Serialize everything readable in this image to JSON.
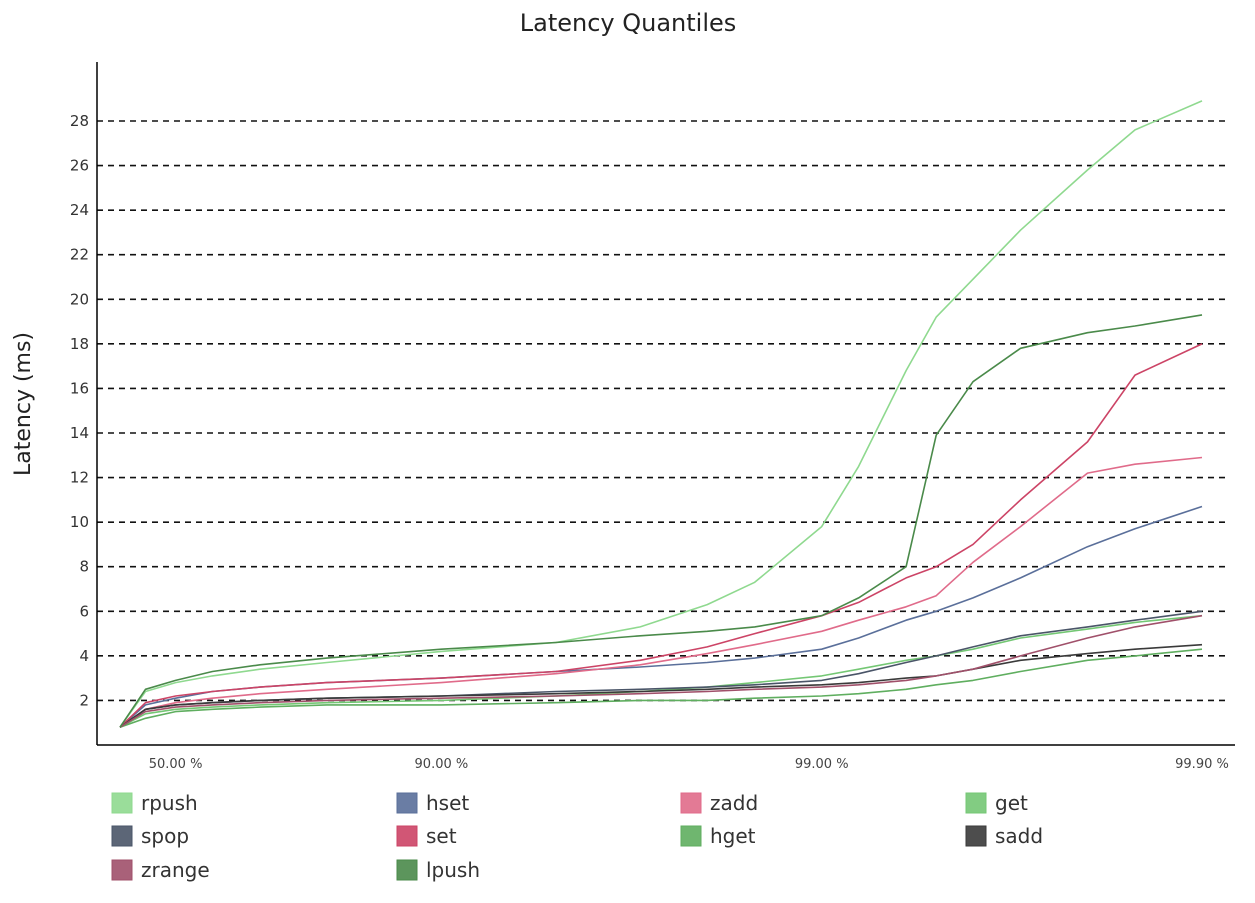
{
  "chart_data": {
    "type": "line",
    "title": "Latency Quantiles",
    "ylabel": "Latency (ms)",
    "xlabel": "",
    "x_scale": "log-reciprocal (1 / (1 - quantile))",
    "x_ticks": [
      "50.00 %",
      "90.00 %",
      "99.00 %",
      "99.90 %"
    ],
    "x_tick_values": [
      50.0,
      90.0,
      99.0,
      99.9
    ],
    "ylim": [
      0,
      31
    ],
    "y_ticks": [
      2,
      4,
      6,
      8,
      10,
      12,
      14,
      16,
      18,
      20,
      22,
      24,
      26,
      28
    ],
    "grid": "horizontal dashed",
    "legend_placement": "bottom",
    "series": [
      {
        "name": "rpush",
        "color": "#8fd98f",
        "x": [
          30,
          40,
          50,
          60,
          70,
          80,
          90,
          95,
          97,
          98,
          98.5,
          99,
          99.2,
          99.4,
          99.5,
          99.6,
          99.7,
          99.8,
          99.85,
          99.9
        ],
        "y": [
          0.8,
          2.4,
          2.8,
          3.1,
          3.4,
          3.7,
          4.2,
          4.6,
          5.3,
          6.3,
          7.3,
          9.8,
          12.5,
          16.8,
          19.2,
          20.9,
          23.1,
          25.8,
          27.6,
          28.9
        ]
      },
      {
        "name": "hset",
        "color": "#5a6f9a",
        "x": [
          30,
          40,
          50,
          60,
          70,
          80,
          90,
          95,
          97,
          98,
          98.5,
          99,
          99.2,
          99.4,
          99.5,
          99.6,
          99.7,
          99.8,
          99.85,
          99.9
        ],
        "y": [
          0.8,
          1.8,
          2.1,
          2.4,
          2.6,
          2.8,
          3.0,
          3.3,
          3.5,
          3.7,
          3.9,
          4.3,
          4.8,
          5.6,
          6.0,
          6.6,
          7.5,
          8.9,
          9.7,
          10.7
        ]
      },
      {
        "name": "zadd",
        "color": "#e06b8a",
        "x": [
          30,
          40,
          50,
          60,
          70,
          80,
          90,
          95,
          97,
          98,
          98.5,
          99,
          99.2,
          99.4,
          99.5,
          99.6,
          99.7,
          99.8,
          99.85,
          99.9
        ],
        "y": [
          0.8,
          1.6,
          1.9,
          2.1,
          2.3,
          2.5,
          2.8,
          3.2,
          3.6,
          4.1,
          4.5,
          5.1,
          5.6,
          6.2,
          6.7,
          8.2,
          9.8,
          12.2,
          12.6,
          12.9
        ]
      },
      {
        "name": "get",
        "color": "#74c774",
        "x": [
          30,
          40,
          50,
          60,
          70,
          80,
          90,
          95,
          97,
          98,
          98.5,
          99,
          99.2,
          99.4,
          99.5,
          99.6,
          99.7,
          99.8,
          99.85,
          99.9
        ],
        "y": [
          0.8,
          1.4,
          1.6,
          1.7,
          1.8,
          1.9,
          2.0,
          2.2,
          2.4,
          2.6,
          2.8,
          3.1,
          3.4,
          3.8,
          4.0,
          4.3,
          4.8,
          5.2,
          5.5,
          5.8
        ]
      },
      {
        "name": "spop",
        "color": "#4a5568",
        "x": [
          30,
          40,
          50,
          60,
          70,
          80,
          90,
          95,
          97,
          98,
          98.5,
          99,
          99.2,
          99.4,
          99.5,
          99.6,
          99.7,
          99.8,
          99.85,
          99.9
        ],
        "y": [
          0.8,
          1.6,
          1.8,
          1.9,
          2.0,
          2.1,
          2.2,
          2.4,
          2.5,
          2.6,
          2.7,
          2.9,
          3.2,
          3.7,
          4.0,
          4.4,
          4.9,
          5.3,
          5.6,
          6.0
        ]
      },
      {
        "name": "set",
        "color": "#cc4466",
        "x": [
          30,
          40,
          50,
          60,
          70,
          80,
          90,
          95,
          97,
          98,
          98.5,
          99,
          99.2,
          99.4,
          99.5,
          99.6,
          99.7,
          99.8,
          99.85,
          99.9
        ],
        "y": [
          0.8,
          1.9,
          2.2,
          2.4,
          2.6,
          2.8,
          3.0,
          3.3,
          3.8,
          4.4,
          5.0,
          5.8,
          6.4,
          7.5,
          8.0,
          9.0,
          11.0,
          13.6,
          16.6,
          18.0
        ]
      },
      {
        "name": "hget",
        "color": "#5fae5f",
        "x": [
          30,
          40,
          50,
          60,
          70,
          80,
          90,
          95,
          97,
          98,
          98.5,
          99,
          99.2,
          99.4,
          99.5,
          99.6,
          99.7,
          99.8,
          99.85,
          99.9
        ],
        "y": [
          0.8,
          1.2,
          1.5,
          1.6,
          1.7,
          1.8,
          1.8,
          1.9,
          2.0,
          2.0,
          2.1,
          2.2,
          2.3,
          2.5,
          2.7,
          2.9,
          3.3,
          3.8,
          4.0,
          4.3
        ]
      },
      {
        "name": "sadd",
        "color": "#3a3a3a",
        "x": [
          30,
          40,
          50,
          60,
          70,
          80,
          90,
          95,
          97,
          98,
          98.5,
          99,
          99.2,
          99.4,
          99.5,
          99.6,
          99.7,
          99.8,
          99.85,
          99.9
        ],
        "y": [
          0.8,
          1.6,
          1.8,
          1.9,
          2.0,
          2.1,
          2.2,
          2.3,
          2.4,
          2.5,
          2.6,
          2.7,
          2.8,
          3.0,
          3.1,
          3.4,
          3.8,
          4.1,
          4.3,
          4.5
        ]
      },
      {
        "name": "zrange",
        "color": "#a0506a",
        "x": [
          30,
          40,
          50,
          60,
          70,
          80,
          90,
          95,
          97,
          98,
          98.5,
          99,
          99.2,
          99.4,
          99.5,
          99.6,
          99.7,
          99.8,
          99.85,
          99.9
        ],
        "y": [
          0.8,
          1.5,
          1.7,
          1.8,
          1.9,
          2.0,
          2.1,
          2.2,
          2.3,
          2.4,
          2.5,
          2.6,
          2.7,
          2.9,
          3.1,
          3.4,
          4.0,
          4.8,
          5.3,
          5.8
        ]
      },
      {
        "name": "lpush",
        "color": "#4a8a4a",
        "x": [
          30,
          40,
          50,
          60,
          70,
          80,
          90,
          95,
          97,
          98,
          98.5,
          99,
          99.2,
          99.4,
          99.5,
          99.6,
          99.7,
          99.8,
          99.85,
          99.9
        ],
        "y": [
          0.8,
          2.5,
          2.9,
          3.3,
          3.6,
          3.9,
          4.3,
          4.6,
          4.9,
          5.1,
          5.3,
          5.8,
          6.6,
          8.0,
          13.9,
          16.3,
          17.8,
          18.5,
          18.8,
          19.3
        ]
      }
    ]
  }
}
